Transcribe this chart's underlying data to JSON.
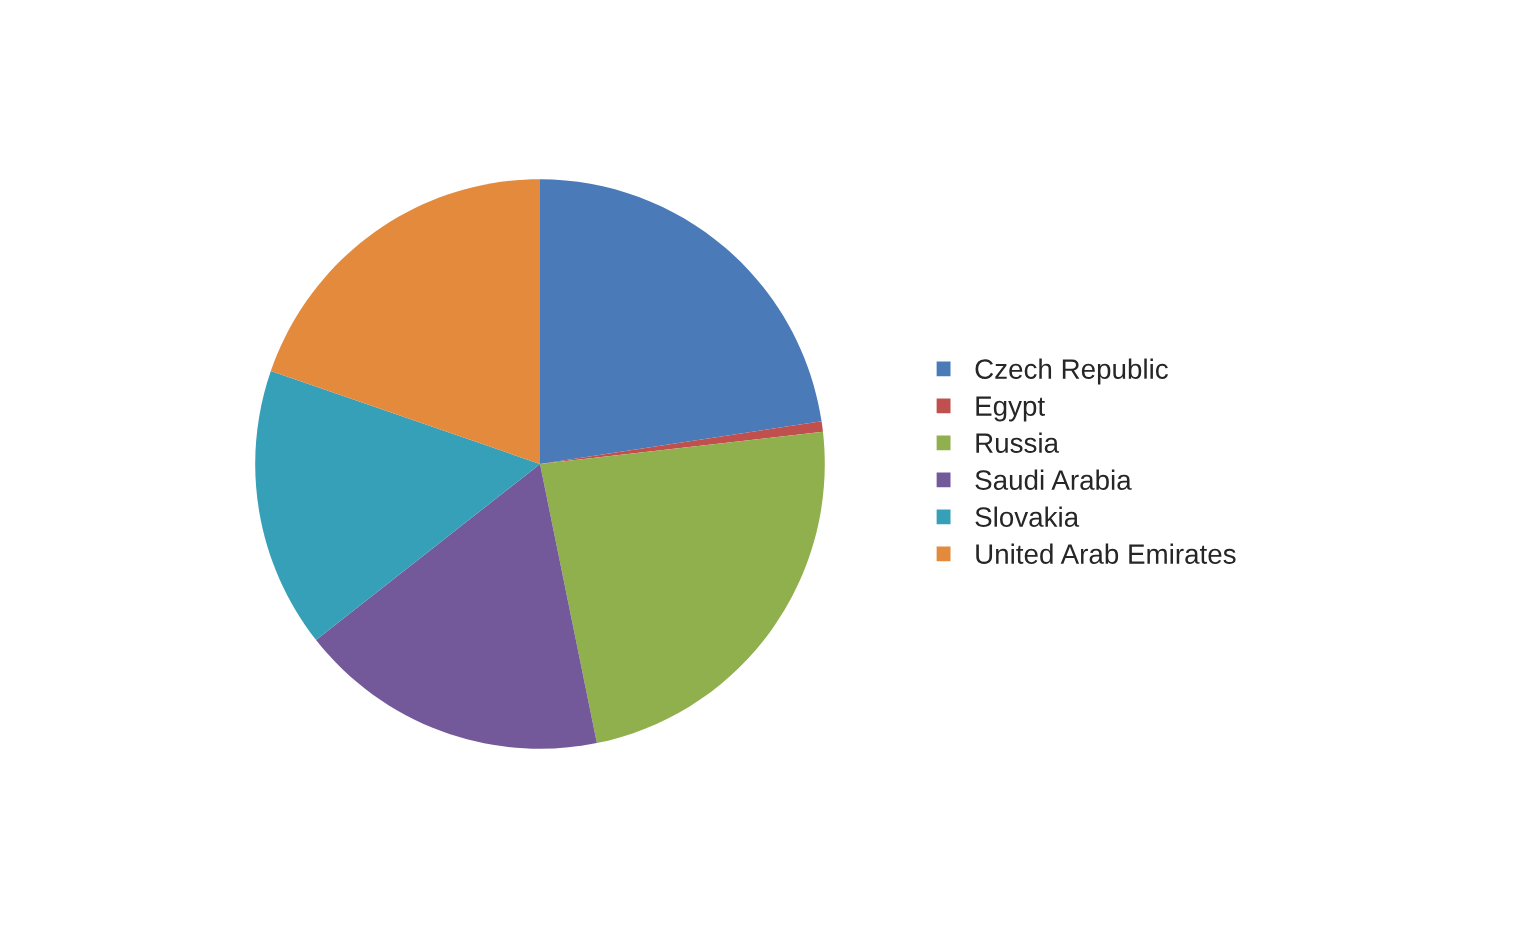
{
  "chart_data": {
    "type": "pie",
    "categories": [
      "Czech Republic",
      "Egypt",
      "Russia",
      "Saudi Arabia",
      "Slovakia",
      "United Arab Emirates"
    ],
    "values": [
      22.6,
      0.6,
      23.6,
      17.6,
      15.9,
      19.7
    ],
    "colors": [
      "#4a7ab8",
      "#c0504d",
      "#8fb04c",
      "#74599a",
      "#36a0b8",
      "#e38a3c"
    ],
    "legend": "right"
  }
}
